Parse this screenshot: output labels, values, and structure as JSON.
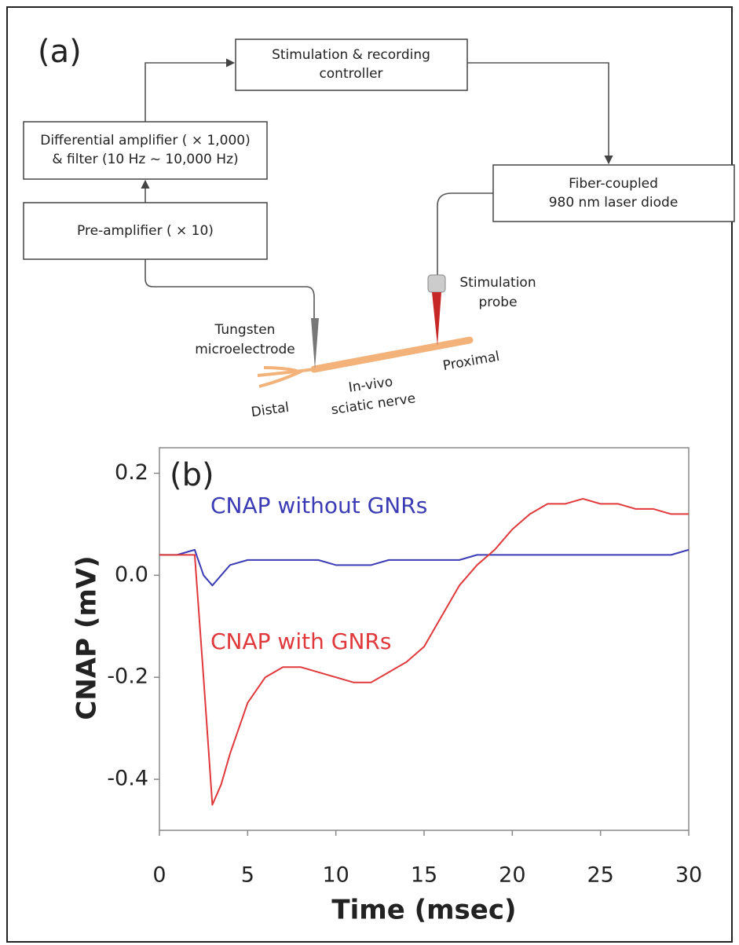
{
  "diagram": {
    "label": "(a)",
    "boxes": [
      {
        "lines": [
          "Stimulation & recording",
          "controller"
        ]
      },
      {
        "lines": [
          "Differential  amplifier ( × 1,000)",
          "& filter (10 Hz ~ 10,000 Hz)"
        ]
      },
      {
        "lines": [
          "Pre-amplifier ( × 10)"
        ]
      },
      {
        "lines": [
          "Fiber-coupled",
          "980 nm laser diode"
        ]
      }
    ],
    "labels": [
      {
        "lines": [
          "Tungsten",
          "microelectrode"
        ]
      },
      {
        "lines": [
          "Stimulation",
          "probe"
        ]
      },
      {
        "lines": [
          "Proximal"
        ]
      },
      {
        "lines": [
          "In-vivo",
          "sciatic nerve"
        ]
      },
      {
        "lines": [
          "Distal"
        ]
      }
    ]
  },
  "chart_data": {
    "type": "line",
    "panel_label": "(b)",
    "x_label": "Time (msec)",
    "y_label": "CNAP (mV)",
    "xlim": [
      0,
      30
    ],
    "ylim": [
      -0.5,
      0.25
    ],
    "xticks": [
      0,
      5,
      10,
      15,
      20,
      25,
      30
    ],
    "yticks": [
      -0.4,
      -0.2,
      {
        "value": 0,
        "label": "0.0"
      },
      0.2
    ],
    "x": [
      0,
      1,
      2,
      2.5,
      3,
      3.5,
      4,
      5,
      6,
      7,
      8,
      9,
      10,
      11,
      12,
      13,
      14,
      15,
      16,
      17,
      18,
      19,
      20,
      21,
      22,
      23,
      24,
      25,
      26,
      27,
      28,
      29,
      30
    ],
    "series": [
      {
        "name": "CNAP without GNRs",
        "color": "#3b3bb5",
        "values": [
          0.04,
          0.04,
          0.05,
          0.0,
          -0.02,
          0.0,
          0.02,
          0.03,
          0.03,
          0.03,
          0.03,
          0.03,
          0.02,
          0.02,
          0.02,
          0.03,
          0.03,
          0.03,
          0.03,
          0.03,
          0.04,
          0.04,
          0.04,
          0.04,
          0.04,
          0.04,
          0.04,
          0.04,
          0.04,
          0.04,
          0.04,
          0.04,
          0.05
        ]
      },
      {
        "name": "CNAP with GNRs",
        "color": "#e0393c",
        "values": [
          0.04,
          0.04,
          0.04,
          -0.2,
          -0.45,
          -0.41,
          -0.35,
          -0.25,
          -0.2,
          -0.18,
          -0.18,
          -0.19,
          -0.2,
          -0.21,
          -0.21,
          -0.19,
          -0.17,
          -0.14,
          -0.08,
          -0.02,
          0.02,
          0.05,
          0.09,
          0.12,
          0.14,
          0.14,
          0.15,
          0.14,
          0.14,
          0.13,
          0.13,
          0.12,
          0.12
        ]
      }
    ]
  }
}
